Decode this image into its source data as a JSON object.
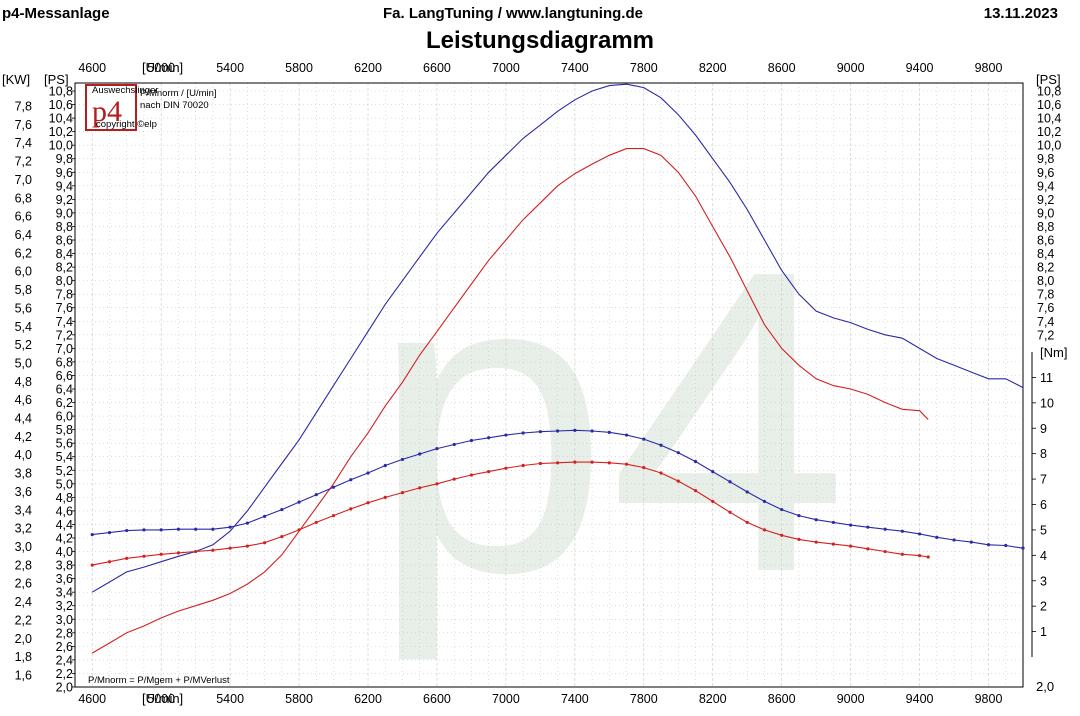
{
  "header": {
    "left": "p4-Messanlage",
    "center": "Fa. LangTuning /   www.langtuning.de",
    "date": "13.11.2023"
  },
  "colors": {
    "power": "#2a2aa8",
    "torque": "#d42020",
    "grid": "#c8c8c8",
    "watermark": "#e8efe9"
  },
  "chart_data": {
    "type": "line",
    "title": "Leistungsdiagramm",
    "grid": true,
    "x": {
      "label": "[U/min]",
      "range": [
        4500,
        10000
      ],
      "ticks": [
        4600,
        5000,
        5400,
        5800,
        6200,
        6600,
        7000,
        7400,
        7800,
        8200,
        8600,
        9000,
        9400,
        9800
      ]
    },
    "y_left_kw": {
      "label": "[KW]",
      "ticks": [
        "7,8",
        "7,6",
        "7,4",
        "7,2",
        "7,0",
        "6,8",
        "6,6",
        "6,4",
        "6,2",
        "6,0",
        "5,8",
        "5,6",
        "5,4",
        "5,2",
        "5,0",
        "4,8",
        "4,6",
        "4,4",
        "4,2",
        "4,0",
        "3,8",
        "3,6",
        "3,4",
        "3,2",
        "3,0",
        "2,8",
        "2,6",
        "2,4",
        "2,2",
        "2,0",
        "1,8",
        "1,6"
      ]
    },
    "y_left_ps": {
      "label": "[PS]",
      "range": [
        2.0,
        11.0
      ],
      "ticks": [
        "10,8",
        "10,6",
        "10,4",
        "10,2",
        "10,0",
        "9,8",
        "9,6",
        "9,4",
        "9,2",
        "9,0",
        "8,8",
        "8,6",
        "8,4",
        "8,2",
        "8,0",
        "7,8",
        "7,6",
        "7,4",
        "7,2",
        "7,0",
        "6,8",
        "6,6",
        "6,4",
        "6,2",
        "6,0",
        "5,8",
        "5,6",
        "5,4",
        "5,2",
        "5,0",
        "4,8",
        "4,6",
        "4,4",
        "4,2",
        "4,0",
        "3,8",
        "3,6",
        "3,4",
        "3,2",
        "3,0",
        "2,8",
        "2,6",
        "2,4",
        "2,2",
        "2,0"
      ]
    },
    "y_right_ps": {
      "label": "[PS]",
      "ticks": [
        "10,8",
        "10,6",
        "10,4",
        "10,2",
        "10,0",
        "9,8",
        "9,6",
        "9,4",
        "9,2",
        "9,0",
        "8,8",
        "8,6",
        "8,4",
        "8,2",
        "8,0",
        "7,8",
        "7,6",
        "7,4",
        "7,2"
      ]
    },
    "y_right_nm": {
      "label": "[Nm]",
      "range": [
        0,
        12
      ],
      "ticks": [
        11,
        10,
        9,
        8,
        7,
        6,
        5,
        4,
        3,
        2,
        1
      ],
      "bottom_label": "2,0"
    },
    "legend_top": [
      "P/Mnorm / [U/min]",
      "nach DIN 70020"
    ],
    "footnote": "P/Mnorm = P/Mgem + P/MVerlust",
    "logo": {
      "text": "p4",
      "top": "Auswechslinger",
      "bottom": "copyright ©elp"
    },
    "series": [
      {
        "role": "power-final",
        "axis": "ps",
        "color": "#2a2aa8",
        "markers": false,
        "x": [
          4600,
          4700,
          4800,
          4900,
          5000,
          5100,
          5200,
          5300,
          5400,
          5500,
          5600,
          5700,
          5800,
          5900,
          6000,
          6100,
          6200,
          6300,
          6400,
          6500,
          6600,
          6700,
          6800,
          6900,
          7000,
          7100,
          7200,
          7300,
          7400,
          7500,
          7600,
          7700,
          7800,
          7900,
          8000,
          8100,
          8200,
          8300,
          8400,
          8500,
          8600,
          8700,
          8800,
          8900,
          9000,
          9100,
          9200,
          9300,
          9400,
          9500,
          9600,
          9700,
          9800,
          9900,
          10000
        ],
        "y": [
          3.4,
          3.55,
          3.7,
          3.77,
          3.85,
          3.93,
          4.0,
          4.1,
          4.3,
          4.6,
          4.95,
          5.3,
          5.65,
          6.05,
          6.45,
          6.85,
          7.25,
          7.65,
          8.0,
          8.35,
          8.7,
          9.0,
          9.3,
          9.6,
          9.85,
          10.1,
          10.3,
          10.5,
          10.67,
          10.8,
          10.88,
          10.9,
          10.85,
          10.7,
          10.45,
          10.15,
          9.8,
          9.45,
          9.05,
          8.6,
          8.15,
          7.8,
          7.55,
          7.45,
          7.38,
          7.28,
          7.2,
          7.15,
          7.0,
          6.85,
          6.75,
          6.65,
          6.55,
          6.55,
          6.42
        ]
      },
      {
        "role": "torque-final",
        "axis": "ps",
        "color": "#d42020",
        "markers": false,
        "x": [
          4600,
          4700,
          4800,
          4900,
          5000,
          5100,
          5200,
          5300,
          5400,
          5500,
          5600,
          5700,
          5800,
          5900,
          6000,
          6100,
          6200,
          6300,
          6400,
          6500,
          6600,
          6700,
          6800,
          6900,
          7000,
          7100,
          7200,
          7300,
          7400,
          7500,
          7600,
          7700,
          7800,
          7900,
          8000,
          8100,
          8200,
          8300,
          8400,
          8500,
          8600,
          8700,
          8800,
          8900,
          9000,
          9100,
          9200,
          9300,
          9400,
          9450
        ],
        "y": [
          2.5,
          2.65,
          2.8,
          2.9,
          3.02,
          3.12,
          3.2,
          3.28,
          3.38,
          3.52,
          3.7,
          3.95,
          4.3,
          4.65,
          5.0,
          5.4,
          5.75,
          6.15,
          6.5,
          6.9,
          7.25,
          7.6,
          7.95,
          8.3,
          8.6,
          8.9,
          9.15,
          9.4,
          9.58,
          9.72,
          9.85,
          9.95,
          9.95,
          9.85,
          9.6,
          9.25,
          8.8,
          8.35,
          7.85,
          7.35,
          7.0,
          6.75,
          6.55,
          6.45,
          6.4,
          6.32,
          6.2,
          6.1,
          6.08,
          5.95
        ]
      },
      {
        "role": "power-base",
        "axis": "ps",
        "color": "#2a2aa8",
        "markers": true,
        "x": [
          4600,
          4700,
          4800,
          4900,
          5000,
          5100,
          5200,
          5300,
          5400,
          5500,
          5600,
          5700,
          5800,
          5900,
          6000,
          6100,
          6200,
          6300,
          6400,
          6500,
          6600,
          6700,
          6800,
          6900,
          7000,
          7100,
          7200,
          7300,
          7400,
          7500,
          7600,
          7700,
          7800,
          7900,
          8000,
          8100,
          8200,
          8300,
          8400,
          8500,
          8600,
          8700,
          8800,
          8900,
          9000,
          9100,
          9200,
          9300,
          9400,
          9500,
          9600,
          9700,
          9800,
          9900,
          10000
        ],
        "y": [
          4.25,
          4.28,
          4.31,
          4.32,
          4.32,
          4.33,
          4.33,
          4.33,
          4.36,
          4.42,
          4.52,
          4.62,
          4.73,
          4.84,
          4.95,
          5.06,
          5.16,
          5.27,
          5.36,
          5.44,
          5.52,
          5.58,
          5.64,
          5.68,
          5.72,
          5.75,
          5.77,
          5.78,
          5.79,
          5.78,
          5.76,
          5.72,
          5.66,
          5.57,
          5.46,
          5.33,
          5.18,
          5.03,
          4.88,
          4.74,
          4.62,
          4.53,
          4.47,
          4.43,
          4.39,
          4.36,
          4.33,
          4.3,
          4.26,
          4.21,
          4.17,
          4.14,
          4.1,
          4.09,
          4.05
        ]
      },
      {
        "role": "torque-base",
        "axis": "ps",
        "color": "#d42020",
        "markers": true,
        "x": [
          4600,
          4700,
          4800,
          4900,
          5000,
          5100,
          5200,
          5300,
          5400,
          5500,
          5600,
          5700,
          5800,
          5900,
          6000,
          6100,
          6200,
          6300,
          6400,
          6500,
          6600,
          6700,
          6800,
          6900,
          7000,
          7100,
          7200,
          7300,
          7400,
          7500,
          7600,
          7700,
          7800,
          7900,
          8000,
          8100,
          8200,
          8300,
          8400,
          8500,
          8600,
          8700,
          8800,
          8900,
          9000,
          9100,
          9200,
          9300,
          9400,
          9450
        ],
        "y": [
          3.8,
          3.85,
          3.9,
          3.93,
          3.96,
          3.98,
          4.0,
          4.02,
          4.05,
          4.08,
          4.13,
          4.22,
          4.32,
          4.43,
          4.53,
          4.63,
          4.72,
          4.8,
          4.87,
          4.94,
          5.0,
          5.07,
          5.13,
          5.18,
          5.23,
          5.27,
          5.3,
          5.31,
          5.32,
          5.32,
          5.31,
          5.29,
          5.24,
          5.16,
          5.04,
          4.9,
          4.74,
          4.58,
          4.43,
          4.32,
          4.24,
          4.18,
          4.14,
          4.11,
          4.08,
          4.04,
          4.0,
          3.96,
          3.94,
          3.92
        ]
      }
    ]
  }
}
